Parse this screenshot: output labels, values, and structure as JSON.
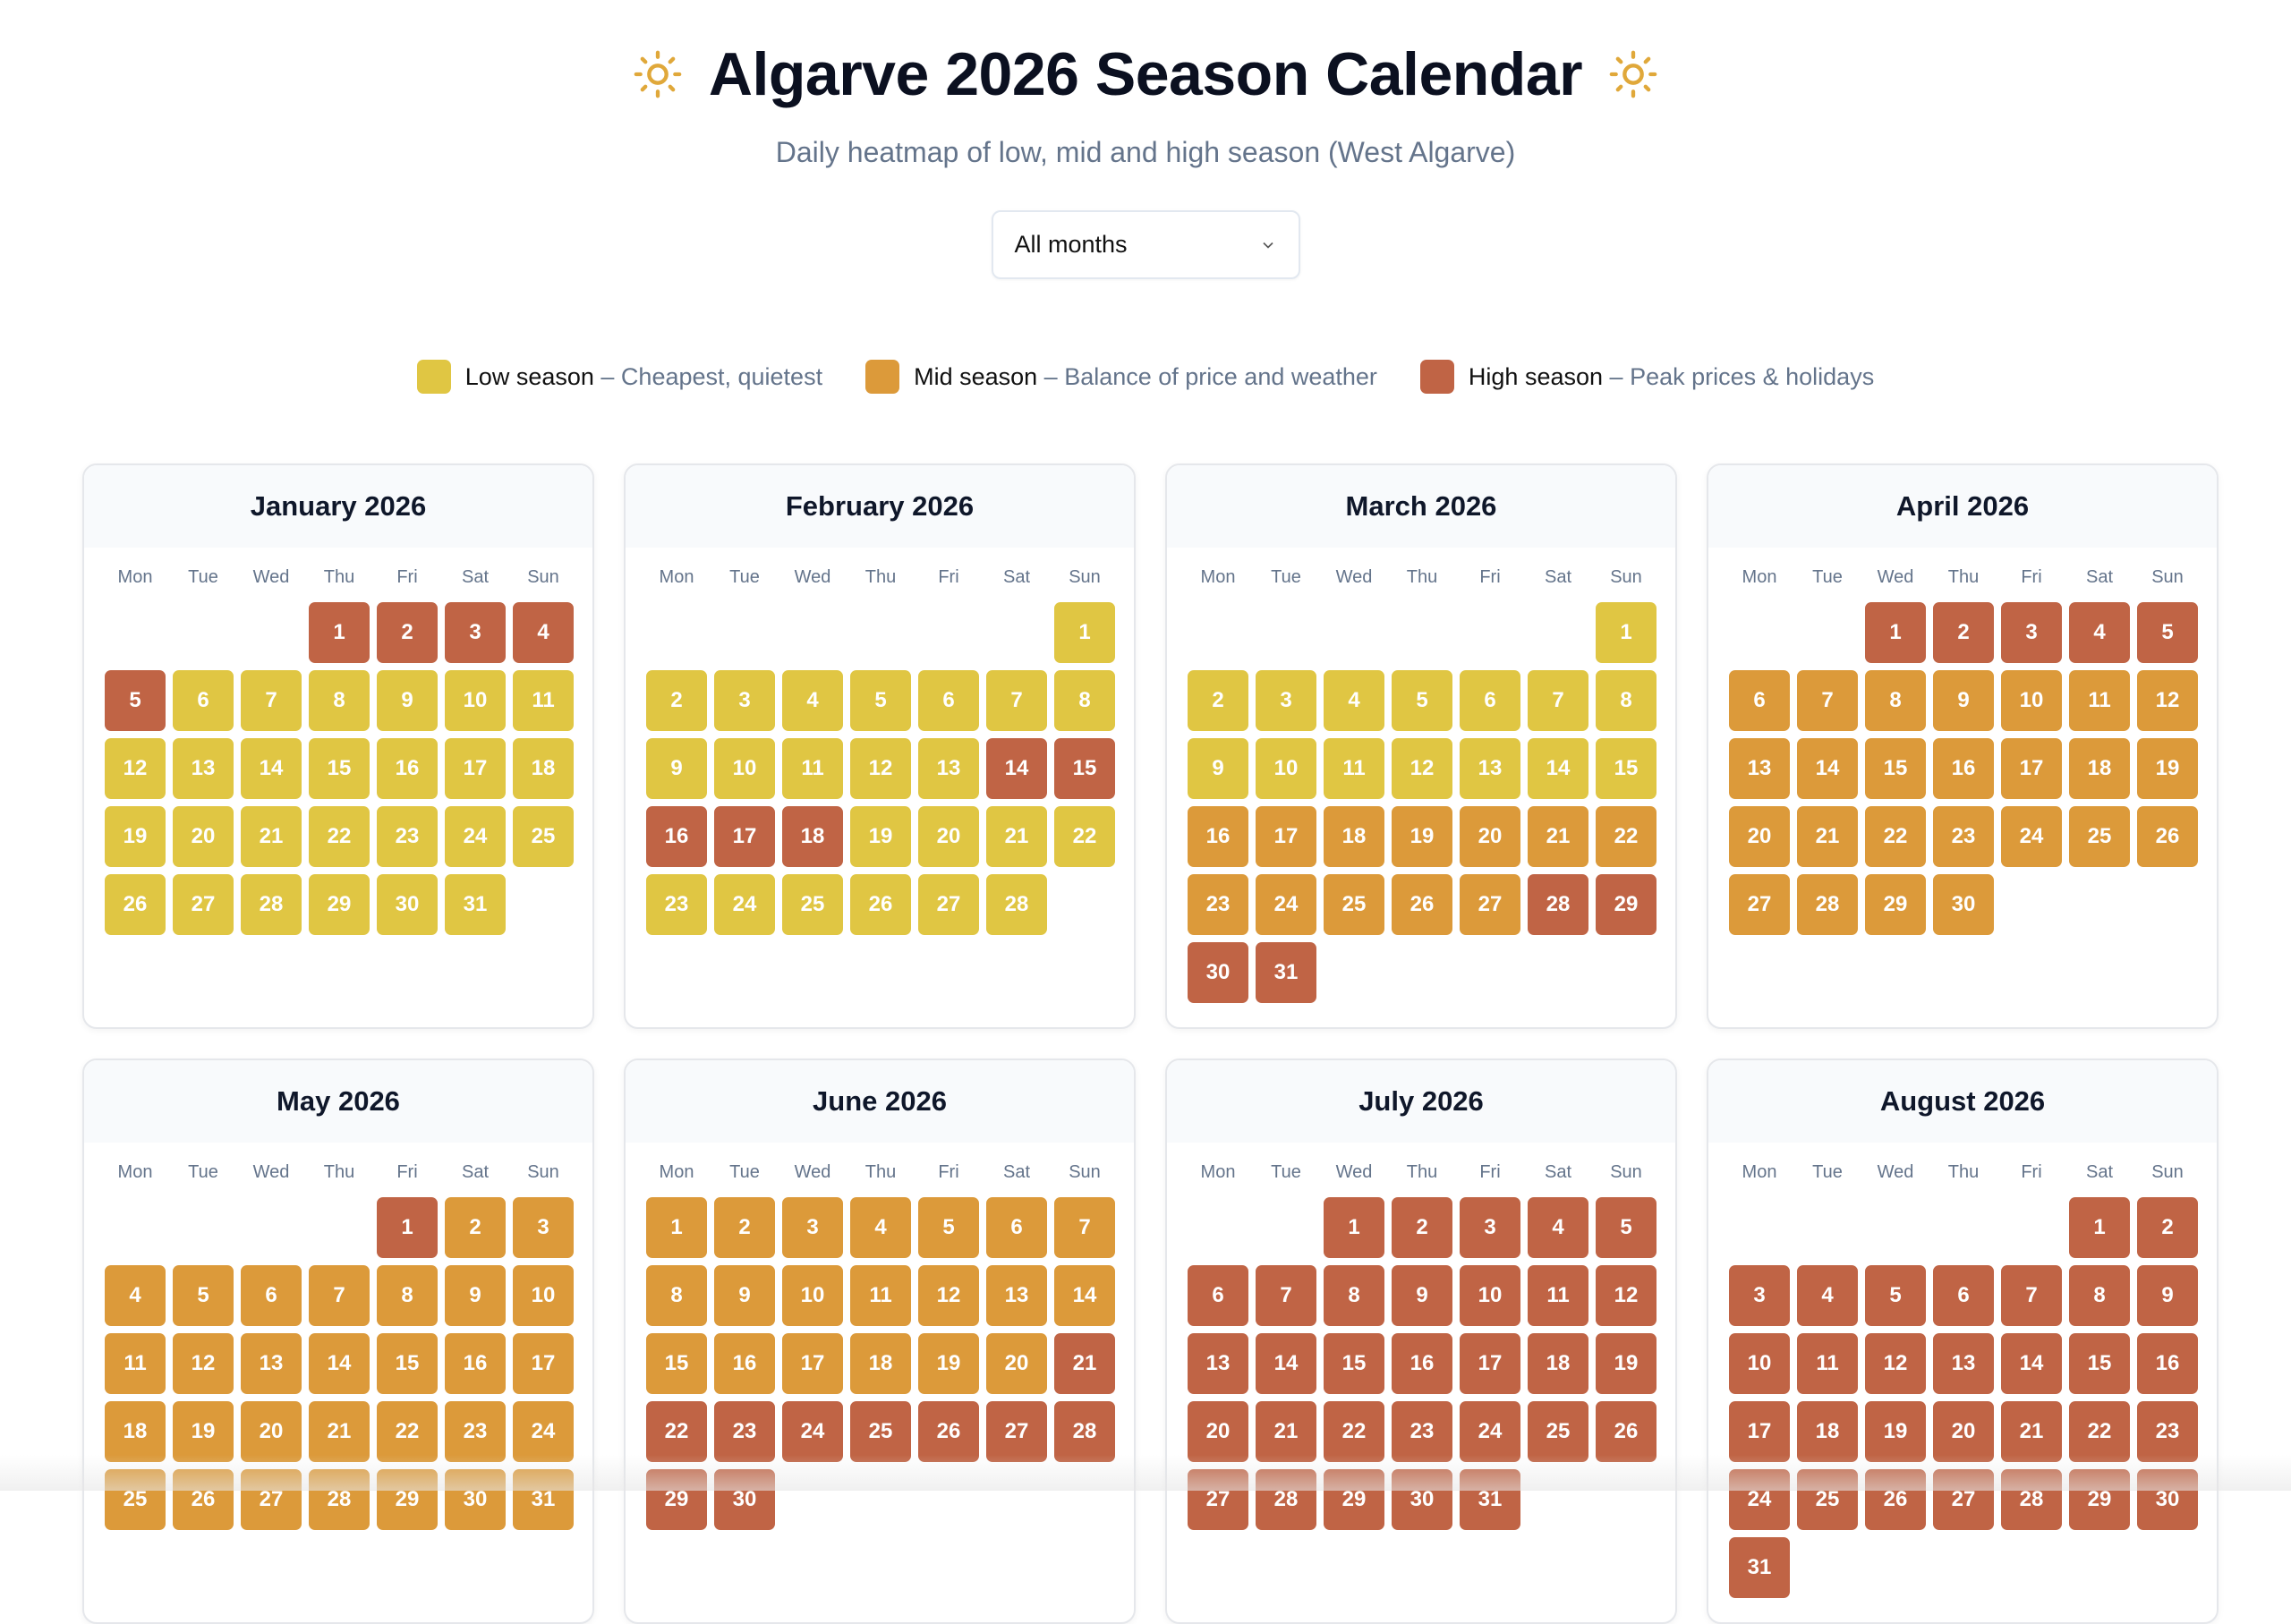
{
  "title": "Algarve 2026 Season Calendar",
  "subtitle": "Daily heatmap of low, mid and high season (West Algarve)",
  "filter": {
    "selected": "All months"
  },
  "colors": {
    "L": "#e0c643",
    "M": "#dc9a3a",
    "H": "#c06445",
    "sun": "#e0a83a"
  },
  "legend": [
    {
      "key": "L",
      "label": "Low season",
      "desc": "– Cheapest, quietest"
    },
    {
      "key": "M",
      "label": "Mid season",
      "desc": "– Balance of price and weather"
    },
    {
      "key": "H",
      "label": "High season",
      "desc": "– Peak prices & holidays"
    }
  ],
  "weekdays": [
    "Mon",
    "Tue",
    "Wed",
    "Thu",
    "Fri",
    "Sat",
    "Sun"
  ],
  "months": [
    {
      "name": "January 2026",
      "offset": 3,
      "days": 31,
      "seasons": "HHHHHLLLLLLLLLLLLLLLLLLLLLLLLLL"
    },
    {
      "name": "February 2026",
      "offset": 6,
      "days": 28,
      "seasons": "LLLLLLLLLLLLLHHHHHLLLLLLLLLL"
    },
    {
      "name": "March 2026",
      "offset": 6,
      "days": 31,
      "seasons": "LLLLLLLLLLLLLLLMMMMMMMMMMMMHHHH"
    },
    {
      "name": "April 2026",
      "offset": 2,
      "days": 30,
      "seasons": "HHHHHMMMMMMMMMMMMMMMMMMMMMMMMM"
    },
    {
      "name": "May 2026",
      "offset": 4,
      "days": 31,
      "seasons": "HMMMMMMMMMMMMMMMMMMMMMMMMMMMMMM"
    },
    {
      "name": "June 2026",
      "offset": 0,
      "days": 30,
      "seasons": "MMMMMMMMMMMMMMMMMMMMHHHHHHHHHH"
    },
    {
      "name": "July 2026",
      "offset": 2,
      "days": 31,
      "seasons": "HHHHHHHHHHHHHHHHHHHHHHHHHHHHHHH"
    },
    {
      "name": "August 2026",
      "offset": 5,
      "days": 31,
      "seasons": "HHHHHHHHHHHHHHHHHHHHHHHHHHHHHHH"
    }
  ]
}
